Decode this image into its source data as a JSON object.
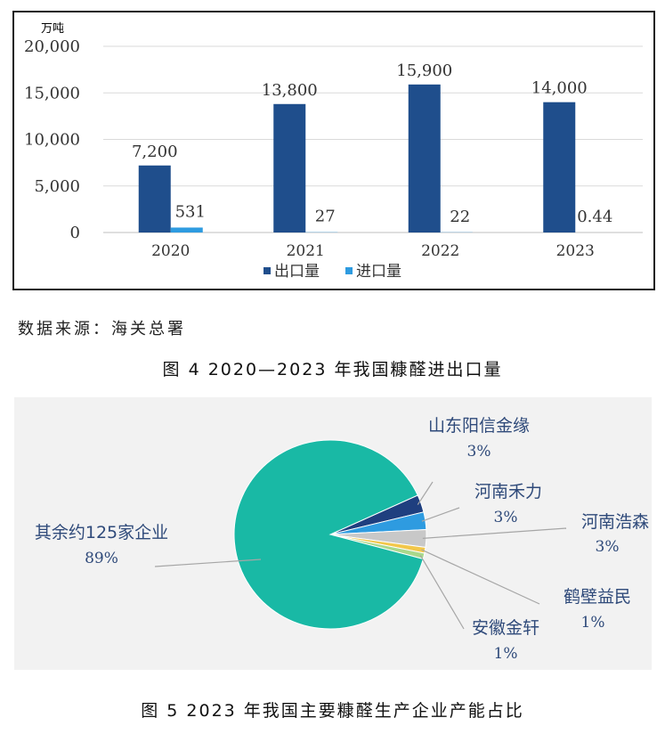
{
  "figure4": {
    "caption": "图 4  2020—2023 年我国糠醛进出口量",
    "source": "数据来源：海关总署"
  },
  "figure5": {
    "caption": "图 5  2023 年我国主要糠醛生产企业产能占比"
  },
  "chart_data": [
    {
      "type": "bar",
      "unit_label": "万吨",
      "categories": [
        "2020",
        "2021",
        "2022",
        "2023"
      ],
      "ylim": [
        0,
        20000
      ],
      "yticks": [
        "0",
        "5,000",
        "10,000",
        "15,000",
        "20,000"
      ],
      "ytick_values": [
        0,
        5000,
        10000,
        15000,
        20000
      ],
      "grid": true,
      "legend_position": "bottom",
      "series": [
        {
          "name": "出口量",
          "color": "#1f4e8c",
          "values": [
            7200,
            13800,
            15900,
            14000
          ],
          "labels": [
            "7,200",
            "13,800",
            "15,900",
            "14,000"
          ]
        },
        {
          "name": "进口量",
          "color": "#2e9be0",
          "values": [
            531,
            27,
            22,
            0.44
          ],
          "labels": [
            "531",
            "27",
            "22",
            "0.44"
          ]
        }
      ]
    },
    {
      "type": "pie",
      "slices": [
        {
          "label": "其余约125家企业",
          "pct_text": "89%",
          "value": 89,
          "color": "#19b9a5"
        },
        {
          "label": "山东阳信金缘",
          "pct_text": "3%",
          "value": 3,
          "color": "#1f3f7f"
        },
        {
          "label": "河南禾力",
          "pct_text": "3%",
          "value": 3,
          "color": "#2e9be0"
        },
        {
          "label": "河南浩森",
          "pct_text": "3%",
          "value": 3,
          "color": "#c8c8c8"
        },
        {
          "label": "鹤壁益民",
          "pct_text": "1%",
          "value": 1,
          "color": "#f2c74a"
        },
        {
          "label": "安徽金轩",
          "pct_text": "1%",
          "value": 1,
          "color": "#a9d88c"
        }
      ]
    }
  ]
}
